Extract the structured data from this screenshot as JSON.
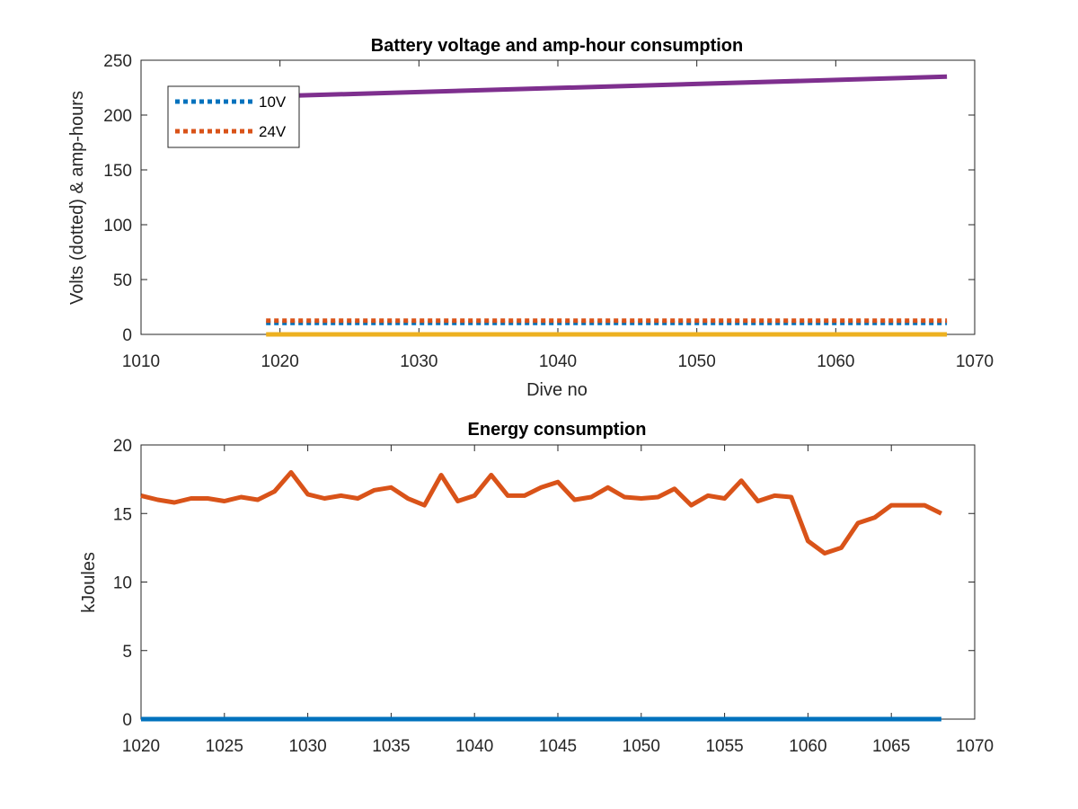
{
  "chart_data": [
    {
      "type": "line",
      "title": "Battery voltage and amp-hour consumption",
      "xlabel": "Dive no",
      "ylabel": "Volts (dotted) & amp-hours",
      "xlim": [
        1010,
        1070
      ],
      "ylim": [
        0,
        250
      ],
      "xticks": [
        "1010",
        "1020",
        "1030",
        "1040",
        "1050",
        "1060",
        "1070"
      ],
      "yticks": [
        "0",
        "50",
        "100",
        "150",
        "200",
        "250"
      ],
      "grid": false,
      "legend_position": "top-left",
      "series": [
        {
          "name": "10V",
          "style": "dotted",
          "color": "#0072BD",
          "x": [
            1019,
            1068
          ],
          "y": [
            10.5,
            10.5
          ]
        },
        {
          "name": "24V",
          "style": "dotted",
          "color": "#D95319",
          "x": [
            1019,
            1068
          ],
          "y": [
            12.5,
            12.5
          ]
        },
        {
          "style": "solid",
          "color": "#7E2F8E",
          "x": [
            1019,
            1068
          ],
          "y": [
            217,
            235
          ]
        },
        {
          "style": "solid",
          "color": "#EDB120",
          "x": [
            1019,
            1068
          ],
          "y": [
            0,
            0
          ]
        }
      ]
    },
    {
      "type": "line",
      "title": "Energy consumption",
      "xlabel": "",
      "ylabel": "kJoules",
      "xlim": [
        1020,
        1070
      ],
      "ylim": [
        0,
        20
      ],
      "xticks": [
        "1020",
        "1025",
        "1030",
        "1035",
        "1040",
        "1045",
        "1050",
        "1055",
        "1060",
        "1065",
        "1070"
      ],
      "yticks": [
        "0",
        "5",
        "10",
        "15",
        "20"
      ],
      "grid": false,
      "series": [
        {
          "style": "solid",
          "color": "#D95319",
          "x": [
            1020,
            1021,
            1022,
            1023,
            1024,
            1025,
            1026,
            1027,
            1028,
            1029,
            1030,
            1031,
            1032,
            1033,
            1034,
            1035,
            1036,
            1037,
            1038,
            1039,
            1040,
            1041,
            1042,
            1043,
            1044,
            1045,
            1046,
            1047,
            1048,
            1049,
            1050,
            1051,
            1052,
            1053,
            1054,
            1055,
            1056,
            1057,
            1058,
            1059,
            1060,
            1061,
            1062,
            1063,
            1064,
            1065,
            1066,
            1067,
            1068
          ],
          "y": [
            16.3,
            16.0,
            15.8,
            16.1,
            16.1,
            15.9,
            16.2,
            16.0,
            16.6,
            18.0,
            16.4,
            16.1,
            16.3,
            16.1,
            16.7,
            16.9,
            16.1,
            15.6,
            17.8,
            15.9,
            16.3,
            17.8,
            16.3,
            16.3,
            16.9,
            17.3,
            16.0,
            16.2,
            16.9,
            16.2,
            16.1,
            16.2,
            16.8,
            15.6,
            16.3,
            16.1,
            17.4,
            15.9,
            16.3,
            16.2,
            13.0,
            12.1,
            12.5,
            14.3,
            14.7,
            15.6,
            15.6,
            15.6,
            15.0
          ]
        },
        {
          "style": "solid",
          "color": "#0072BD",
          "x": [
            1020,
            1068
          ],
          "y": [
            0,
            0
          ]
        }
      ]
    }
  ]
}
